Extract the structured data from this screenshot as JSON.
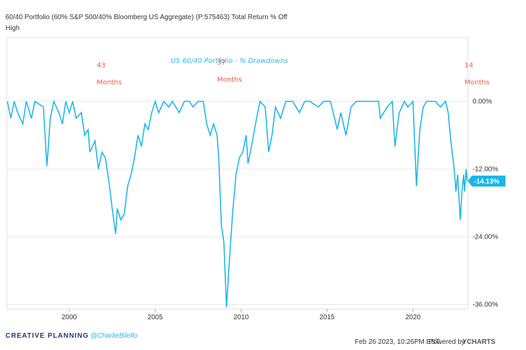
{
  "chart_data": {
    "type": "line",
    "header": [
      "60/40 Portfolio (60% S&P 500/40% Bloomberg US Aggregate) (P:575463) Total Return % Off",
      "High"
    ],
    "title": "US 60/40 Portfolio - % Drawdowns",
    "annotations": [
      {
        "lines": [
          "43",
          "Months"
        ],
        "x": 2001.6,
        "y": 6
      },
      {
        "lines": [
          "37",
          "Months"
        ],
        "x": 2008.6,
        "y": 6.5
      },
      {
        "lines": [
          "14",
          "Months"
        ],
        "x": 2023.0,
        "y": 6
      }
    ],
    "last_value_label": "-14.13%",
    "footer": {
      "brand": "CREATIVE PLANNING",
      "handle": "@CharlieBilello",
      "date": "Feb 26 2023, 10:26PM EST.",
      "powered": "Powered by",
      "source": "YCHARTS"
    },
    "xlim": [
      1996.37,
      2023.19
    ],
    "xticks": [
      2000,
      2005,
      2010,
      2015,
      2020
    ],
    "ylim": [
      -36.8,
      11.3
    ],
    "yticks": [
      {
        "value": 0,
        "label": "0.00%"
      },
      {
        "value": -12,
        "label": "-12.00%"
      },
      {
        "value": -24,
        "label": "-24.00%"
      },
      {
        "value": -36,
        "label": "-36.00%"
      }
    ],
    "grid": true,
    "series": [
      {
        "name": "60/40 Portfolio",
        "color": "#1bb5ea",
        "x": [
          1996.4,
          1996.6,
          1996.8,
          1997.0,
          1997.3,
          1997.5,
          1997.8,
          1998.0,
          1998.5,
          1998.7,
          1998.9,
          1999.1,
          1999.4,
          1999.6,
          1999.8,
          2000.0,
          2000.2,
          2000.4,
          2000.7,
          2000.9,
          2001.1,
          2001.2,
          2001.5,
          2001.7,
          2001.9,
          2002.1,
          2002.3,
          2002.5,
          2002.7,
          2002.8,
          2003.0,
          2003.2,
          2003.4,
          2003.6,
          2003.8,
          2004.0,
          2004.2,
          2004.4,
          2004.6,
          2004.8,
          2005.0,
          2005.2,
          2005.5,
          2005.8,
          2006.0,
          2006.4,
          2006.7,
          2007.0,
          2007.2,
          2007.5,
          2007.8,
          2008.0,
          2008.2,
          2008.4,
          2008.6,
          2008.7,
          2008.85,
          2009.0,
          2009.15,
          2009.3,
          2009.5,
          2009.7,
          2009.9,
          2010.1,
          2010.3,
          2010.4,
          2010.6,
          2010.9,
          2011.1,
          2011.4,
          2011.6,
          2011.8,
          2012.0,
          2012.3,
          2012.6,
          2013.0,
          2013.4,
          2013.7,
          2014.0,
          2014.5,
          2014.8,
          2015.2,
          2015.6,
          2015.8,
          2016.1,
          2016.4,
          2016.7,
          2017.0,
          2017.5,
          2018.0,
          2018.1,
          2018.5,
          2018.8,
          2018.95,
          2019.2,
          2019.5,
          2019.7,
          2020.0,
          2020.2,
          2020.4,
          2020.6,
          2020.8,
          2021.0,
          2021.3,
          2021.6,
          2021.9,
          2022.05,
          2022.2,
          2022.4,
          2022.5,
          2022.6,
          2022.75,
          2022.85,
          2022.95,
          2023.0,
          2023.1,
          2023.15
        ],
        "values": [
          0,
          -3,
          0,
          -2,
          -4,
          0,
          -3,
          0,
          -1,
          -11.5,
          -3,
          0,
          -2,
          -4,
          0,
          -2,
          0,
          -3,
          -2,
          -6,
          -5,
          -9,
          -7,
          -12,
          -9,
          -10,
          -14,
          -19,
          -23.5,
          -19,
          -21,
          -20,
          -15,
          -13,
          -10,
          -6,
          -8,
          -4,
          -5,
          -2,
          0,
          -2,
          0,
          -1,
          0,
          -2,
          0,
          0,
          -1,
          0,
          0,
          -4,
          -6,
          -4,
          -6,
          -10,
          -22,
          -25,
          -36.5,
          -29,
          -20,
          -13,
          -10,
          -9,
          -6,
          -11,
          -8,
          -3,
          0,
          -1,
          -9,
          -6,
          -1,
          -3,
          0,
          0,
          -2,
          0,
          0,
          -1,
          0,
          0,
          -5,
          -2,
          -6,
          -1,
          0,
          0,
          0,
          0,
          -3,
          -1,
          0,
          -8,
          -2,
          0,
          -1,
          0,
          -15,
          -5,
          -1,
          0,
          0,
          0,
          -1,
          0,
          -2,
          -7,
          -12,
          -16,
          -13,
          -21,
          -16,
          -13,
          -16,
          -12,
          -14.13
        ]
      }
    ]
  }
}
